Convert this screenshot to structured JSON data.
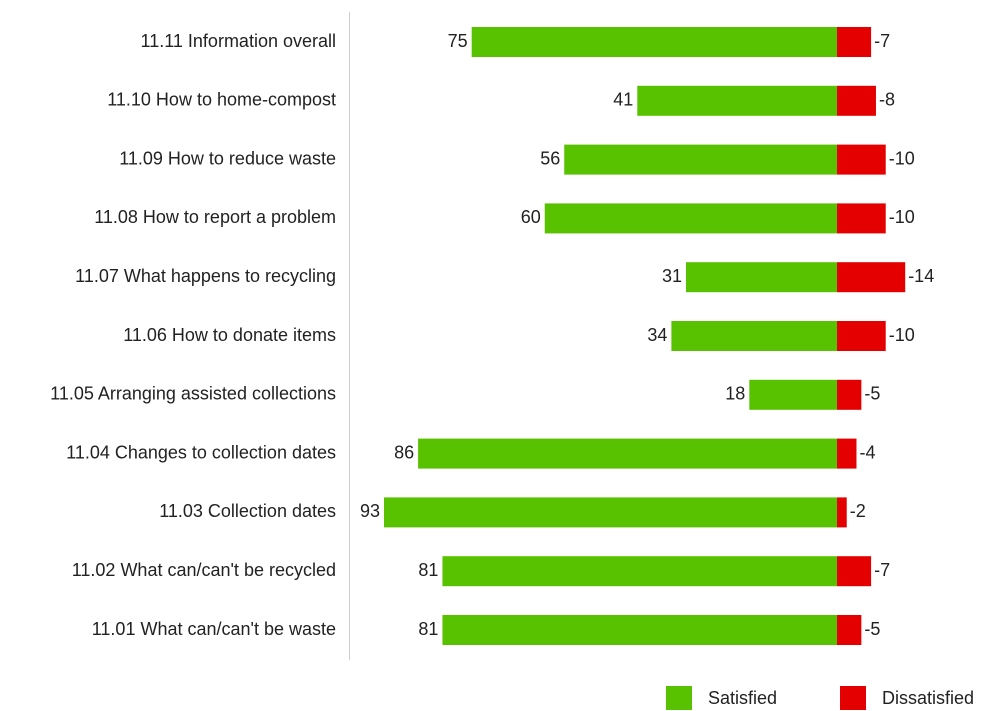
{
  "chart_data": {
    "type": "diverging_bar",
    "categories": [
      "11.11 Information overall",
      "11.10 How to home-compost",
      "11.09 How to reduce waste",
      "11.08 How to report a problem",
      "11.07 What happens to recycling",
      "11.06 How to donate items",
      "11.05 Arranging assisted collections",
      "11.04 Changes to collection dates",
      "11.03 Collection dates",
      "11.02 What can/can't be recycled",
      "11.01 What can/can't be waste"
    ],
    "series": [
      {
        "name": "Satisfied",
        "color": "#58c200",
        "values": [
          75,
          41,
          56,
          60,
          31,
          34,
          18,
          86,
          93,
          81,
          81
        ]
      },
      {
        "name": "Dissatisfied",
        "color": "#e40000",
        "values": [
          -7,
          -8,
          -10,
          -10,
          -14,
          -10,
          -5,
          -4,
          -2,
          -7,
          -5
        ]
      }
    ],
    "legend": "bottom-right"
  }
}
